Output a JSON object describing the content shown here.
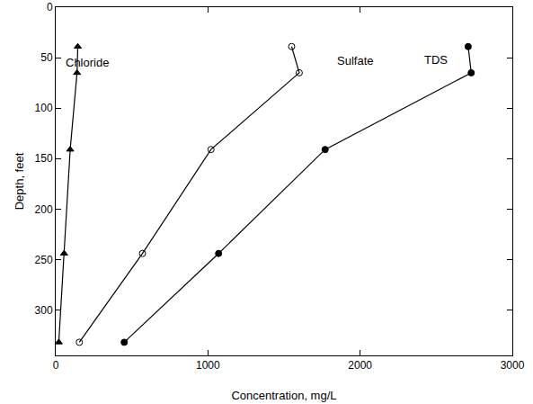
{
  "chart_data": {
    "type": "line",
    "xlabel": "Concentration, mg/L",
    "ylabel": "Depth, feet",
    "xlim": [
      0,
      3000
    ],
    "xticks": [
      0,
      1000,
      2000,
      3000
    ],
    "ylim": [
      345,
      0
    ],
    "yticks": [
      0,
      50,
      100,
      150,
      200,
      250,
      300
    ],
    "grid": false,
    "series": [
      {
        "name": "Chloride",
        "color": "#000000",
        "marker": "triangle-up",
        "line_style": "solid",
        "x": [
          145,
          140,
          95,
          55,
          20
        ],
        "values": [
          39,
          65,
          141,
          244,
          332
        ]
      },
      {
        "name": "Sulfate",
        "color": "#000000",
        "marker": "circle-open",
        "line_style": "solid",
        "x": [
          1550,
          1600,
          1020,
          570,
          155
        ],
        "values": [
          39,
          65,
          141,
          244,
          332
        ]
      },
      {
        "name": "TDS",
        "color": "#000000",
        "marker": "circle",
        "line_style": "solid",
        "x": [
          2710,
          2730,
          1770,
          1070,
          450
        ],
        "values": [
          39,
          65,
          141,
          244,
          332
        ]
      }
    ],
    "annotations": [
      {
        "text": "Chloride",
        "x": 205,
        "y": 55
      },
      {
        "text": "Sulfate",
        "x": 1965,
        "y": 53
      },
      {
        "text": "TDS",
        "x": 2500,
        "y": 52
      }
    ]
  }
}
